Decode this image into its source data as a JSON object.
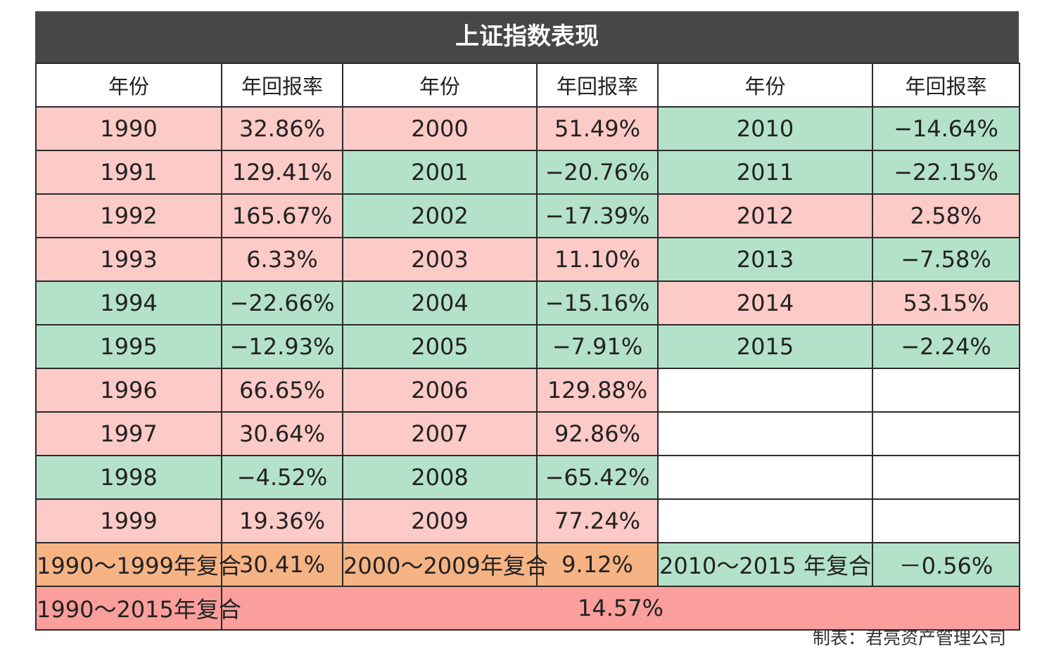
{
  "title": "上证指数表现",
  "headers": [
    "年份",
    "年回报率",
    "年份",
    "年回报率",
    "年份",
    "年回报率"
  ],
  "colors": {
    "header_bg": "#474747",
    "positive": "#fccac7",
    "negative": "#b4e1ca",
    "compound_orange": "#f6b384",
    "compound_total": "#fa9f9c"
  },
  "chart_data": {
    "type": "table",
    "title": "上证指数表现",
    "columns": [
      "年份",
      "年回报率"
    ],
    "rows": [
      [
        "1990",
        "32.86%"
      ],
      [
        "1991",
        "129.41%"
      ],
      [
        "1992",
        "165.67%"
      ],
      [
        "1993",
        "6.33%"
      ],
      [
        "1994",
        "−22.66%"
      ],
      [
        "1995",
        "−12.93%"
      ],
      [
        "1996",
        "66.65%"
      ],
      [
        "1997",
        "30.64%"
      ],
      [
        "1998",
        "−4.52%"
      ],
      [
        "1999",
        "19.36%"
      ],
      [
        "2000",
        "51.49%"
      ],
      [
        "2001",
        "−20.76%"
      ],
      [
        "2002",
        "−17.39%"
      ],
      [
        "2003",
        "11.10%"
      ],
      [
        "2004",
        "−15.16%"
      ],
      [
        "2005",
        "−7.91%"
      ],
      [
        "2006",
        "129.88%"
      ],
      [
        "2007",
        "92.86%"
      ],
      [
        "2008",
        "−65.42%"
      ],
      [
        "2009",
        "77.24%"
      ],
      [
        "2010",
        "−14.64%"
      ],
      [
        "2011",
        "−22.15%"
      ],
      [
        "2012",
        "2.58%"
      ],
      [
        "2013",
        "−7.58%"
      ],
      [
        "2014",
        "53.15%"
      ],
      [
        "2015",
        "−2.24%"
      ]
    ],
    "compound": [
      {
        "label": "1990～1999年复合",
        "value": "30.41%"
      },
      {
        "label": "2000～2009年复合",
        "value": "9.12%"
      },
      {
        "label": "2010～2015 年复合",
        "value": "－0.56%"
      }
    ],
    "overall": {
      "label": "1990～2015年复合",
      "value": "14.57%"
    }
  },
  "footer": "制表：君亮资产管理公司"
}
